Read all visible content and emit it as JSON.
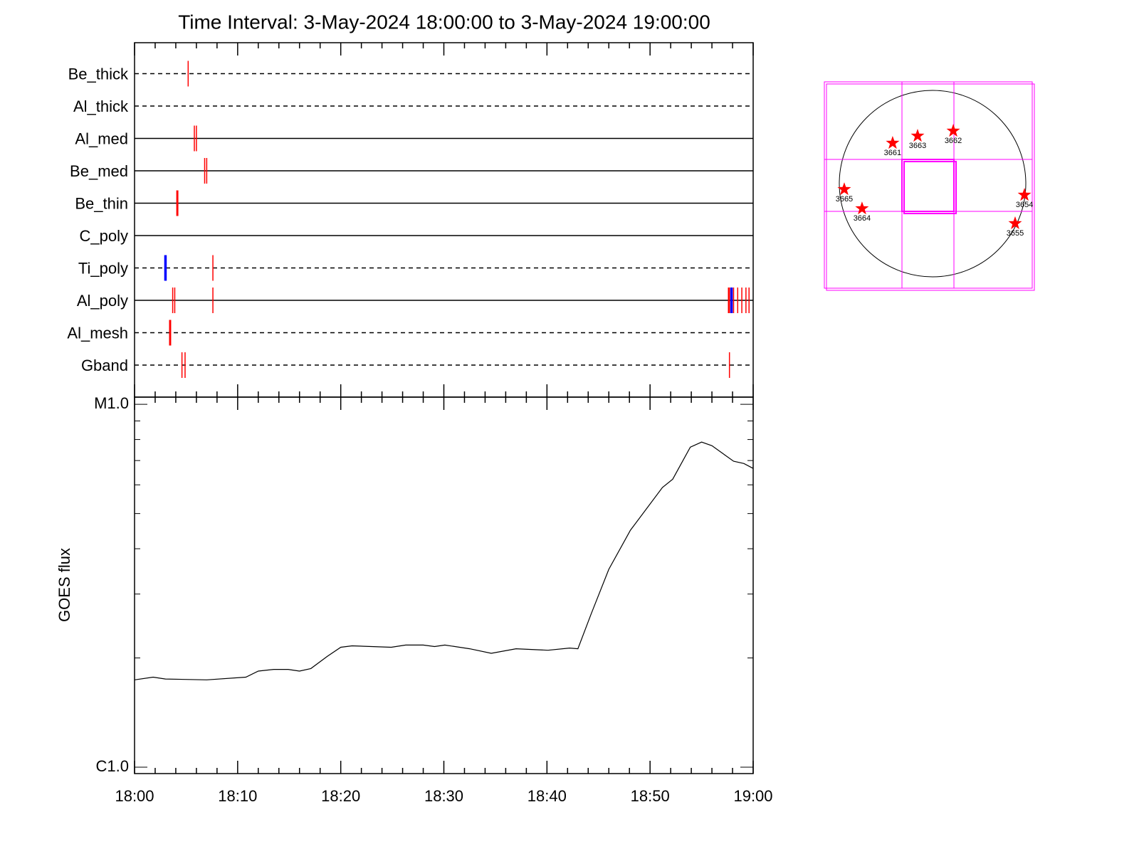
{
  "chart_data": [
    {
      "type": "timeline",
      "title": "Time Interval:  3-May-2024 18:00:00 to  3-May-2024 19:00:00",
      "xlim": [
        0,
        60
      ],
      "xticks": [
        0,
        10,
        20,
        30,
        40,
        50,
        60
      ],
      "minor_xticks": [
        2,
        4,
        6,
        8,
        12,
        14,
        16,
        18,
        22,
        24,
        26,
        28,
        32,
        34,
        36,
        38,
        42,
        44,
        46,
        48,
        52,
        54,
        56,
        58
      ],
      "series": [
        {
          "name": "Be_thick",
          "line": "dashed",
          "times": [
            5.2
          ],
          "colors": [
            "#ff0000"
          ]
        },
        {
          "name": "Al_thick",
          "line": "dashed",
          "times": [],
          "colors": []
        },
        {
          "name": "Al_med",
          "line": "solid",
          "times": [
            5.8,
            6.0
          ],
          "colors": [
            "#ff0000",
            "#ff0000"
          ]
        },
        {
          "name": "Be_med",
          "line": "solid",
          "times": [
            6.8,
            7.0
          ],
          "colors": [
            "#ff0000",
            "#ff0000"
          ]
        },
        {
          "name": "Be_thin",
          "line": "solid",
          "times": [
            4.1,
            4.2
          ],
          "colors": [
            "#ff0000",
            "#ff0000"
          ]
        },
        {
          "name": "C_poly",
          "line": "solid",
          "times": [],
          "colors": []
        },
        {
          "name": "Ti_poly",
          "line": "dashed",
          "times": [
            3.0,
            7.6
          ],
          "colors": [
            "#0000ff",
            "#ff0000"
          ]
        },
        {
          "name": "Al_poly",
          "line": "solid",
          "times": [
            3.7,
            3.9,
            7.6,
            57.6,
            57.7,
            57.9,
            58.1,
            58.5,
            58.9,
            59.3,
            59.6
          ],
          "colors": [
            "#ff0000",
            "#ff0000",
            "#ff0000",
            "#ff0000",
            "#ff0000",
            "#0000ff",
            "#ff0000",
            "#ff0000",
            "#ff0000",
            "#ff0000",
            "#ff0000"
          ]
        },
        {
          "name": "Al_mesh",
          "line": "dashed",
          "times": [
            3.4,
            3.5
          ],
          "colors": [
            "#ff0000",
            "#ff0000"
          ]
        },
        {
          "name": "Gband",
          "line": "dashed",
          "times": [
            4.6,
            4.9,
            57.7
          ],
          "colors": [
            "#ff0000",
            "#ff0000",
            "#ff0000"
          ]
        }
      ]
    },
    {
      "type": "line",
      "y_label": "GOES flux",
      "log_y": true,
      "color": "#000000",
      "xlim": [
        0,
        60
      ],
      "xticks": [
        {
          "value": 0,
          "label": "18:00"
        },
        {
          "value": 10,
          "label": "18:10"
        },
        {
          "value": 20,
          "label": "18:20"
        },
        {
          "value": 30,
          "label": "18:30"
        },
        {
          "value": 40,
          "label": "18:40"
        },
        {
          "value": 50,
          "label": "18:50"
        },
        {
          "value": 60,
          "label": "19:00"
        }
      ],
      "minor_xticks": [
        2,
        4,
        6,
        8,
        12,
        14,
        16,
        18,
        22,
        24,
        26,
        28,
        32,
        34,
        36,
        38,
        42,
        44,
        46,
        48,
        52,
        54,
        56,
        58
      ],
      "ylim": [
        9.6e-07,
        1.047e-05
      ],
      "yticks": [
        {
          "value": 1e-06,
          "label": "C1.0"
        },
        {
          "value": 1e-05,
          "label": "M1.0"
        }
      ],
      "minor_yticks": [
        2e-06,
        3e-06,
        4e-06,
        5e-06,
        6e-06,
        7e-06,
        8e-06,
        9e-06
      ],
      "x": [
        0,
        1.8,
        3.0,
        7.0,
        10.8,
        12.0,
        13.5,
        14.9,
        16.0,
        17.1,
        18.7,
        20.0,
        21.1,
        24.9,
        26.3,
        28.0,
        29.1,
        30.1,
        32.5,
        34.6,
        37.0,
        40.1,
        42.2,
        43.0,
        44.3,
        46.0,
        48.1,
        51.2,
        52.2,
        53.9,
        55.0,
        56.0,
        58.1,
        59.1,
        60.0
      ],
      "values": [
        1.74e-06,
        1.77e-06,
        1.75e-06,
        1.74e-06,
        1.77e-06,
        1.84e-06,
        1.86e-06,
        1.86e-06,
        1.84e-06,
        1.87e-06,
        2.02e-06,
        2.14e-06,
        2.16e-06,
        2.14e-06,
        2.17e-06,
        2.17e-06,
        2.15e-06,
        2.17e-06,
        2.12e-06,
        2.06e-06,
        2.12e-06,
        2.1e-06,
        2.13e-06,
        2.12e-06,
        2.65e-06,
        3.51e-06,
        4.5e-06,
        5.9e-06,
        6.22e-06,
        7.62e-06,
        7.87e-06,
        7.69e-06,
        6.97e-06,
        6.87e-06,
        6.66e-06
      ]
    },
    {
      "type": "map",
      "limb_radius": 960,
      "limb_color": "#000000",
      "fov_color": "#ff00ff",
      "region_color": "#ff0000",
      "fov_boxes": [
        [
          -1114,
          -1077,
          1026,
          1048
        ],
        [
          -315,
          -286,
          220,
          249
        ]
      ],
      "regions": [
        {
          "label": "3661",
          "x": -411,
          "y": 418
        },
        {
          "label": "3663",
          "x": -154,
          "y": 491
        },
        {
          "label": "3662",
          "x": 213,
          "y": 542
        },
        {
          "label": "3665",
          "x": -909,
          "y": -59
        },
        {
          "label": "3664",
          "x": -726,
          "y": -257
        },
        {
          "label": "3654",
          "x": 946,
          "y": -117
        },
        {
          "label": "3655",
          "x": 850,
          "y": -410
        }
      ]
    }
  ]
}
